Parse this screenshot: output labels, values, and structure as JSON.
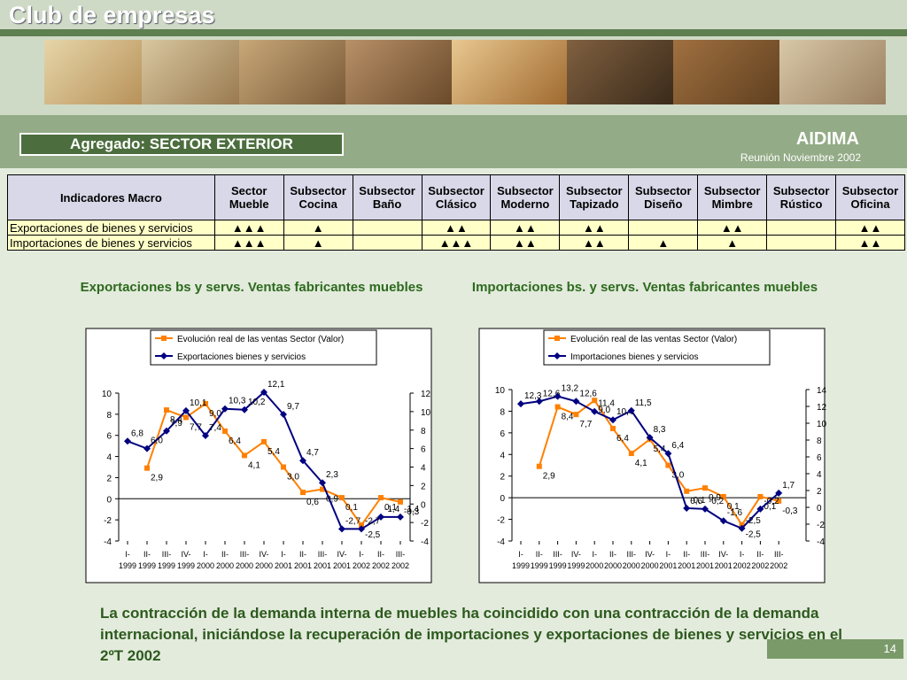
{
  "header": {
    "title": "Club de empresas",
    "section": "Agregado: SECTOR EXTERIOR",
    "org": "AIDIMA",
    "meeting": "Reunión Noviembre 2002"
  },
  "table": {
    "corner": "Indicadores Macro",
    "columns": [
      "Sector Mueble",
      "Subsector Cocina",
      "Subsector Baño",
      "Subsector Clásico",
      "Subsector Moderno",
      "Subsector Tapizado",
      "Subsector Diseño",
      "Subsector Mimbre",
      "Subsector Rústico",
      "Subsector Oficina"
    ],
    "rows": [
      [
        "Exportaciones de bienes y servicios",
        "▲▲▲",
        "▲",
        null,
        "▲▲",
        "▲▲",
        "▲▲",
        null,
        "▲▲",
        null,
        "▲▲"
      ],
      [
        "Importaciones de bienes y servicios",
        "▲▲▲",
        "▲",
        null,
        "▲▲▲",
        "▲▲",
        "▲▲",
        "▲",
        "▲",
        null,
        "▲▲"
      ]
    ]
  },
  "chart_data": [
    {
      "type": "line",
      "title": "Exportaciones bs y servs. Ventas fabricantes muebles",
      "categories": [
        [
          "I-",
          "1999"
        ],
        [
          "II-",
          "1999"
        ],
        [
          "III-",
          "1999"
        ],
        [
          "IV-",
          "1999"
        ],
        [
          "I-",
          "2000"
        ],
        [
          "II-",
          "2000"
        ],
        [
          "III-",
          "2000"
        ],
        [
          "IV-",
          "2000"
        ],
        [
          "I-",
          "2001"
        ],
        [
          "II-",
          "2001"
        ],
        [
          "III-",
          "2001"
        ],
        [
          "IV-",
          "2001"
        ],
        [
          "I-",
          "2002"
        ],
        [
          "II-",
          "2002"
        ],
        [
          "III-",
          "2002"
        ]
      ],
      "series": [
        {
          "name": "Evolución real de las ventas Sector (Valor)",
          "color": "#ff8000",
          "marker": "square",
          "values": [
            null,
            2.9,
            8.4,
            7.7,
            9.0,
            6.4,
            4.1,
            5.4,
            3.0,
            0.6,
            0.9,
            0.1,
            -2.5,
            0.1,
            -0.3
          ],
          "value_labels": [
            null,
            "2,9",
            "8,4",
            "7,7",
            "9,0",
            "6,4",
            "4,1",
            "5,4",
            "3,0",
            "0,6",
            "0,9",
            "0,1",
            "-2,5",
            "0,1",
            "-0,3"
          ]
        },
        {
          "name": "Exportaciones bienes y servicios",
          "color": "#000080",
          "marker": "diamond",
          "axis": "y2",
          "values": [
            6.8,
            6.0,
            7.9,
            10.1,
            7.4,
            10.3,
            10.2,
            12.1,
            9.7,
            4.7,
            2.3,
            -2.7,
            -2.7,
            -1.4,
            -1.4
          ],
          "value_labels": [
            "6,8",
            "6,0",
            "7,9",
            "10,1",
            "7,4",
            "10,3",
            "10,2",
            "12,1",
            "9,7",
            "4,7",
            "2,3",
            "-2,7",
            "-2,7",
            "-1,4",
            "-1,4"
          ]
        }
      ],
      "ylim": [
        -4,
        10
      ],
      "yticks": [
        -4,
        -2,
        0,
        2,
        4,
        6,
        8,
        10
      ],
      "y2lim": [
        -4,
        12
      ],
      "y2ticks": [
        -4,
        -2,
        0,
        2,
        4,
        6,
        8,
        10,
        12
      ]
    },
    {
      "type": "line",
      "title": "Importaciones bs. y servs. Ventas fabricantes muebles",
      "categories": [
        [
          "I-",
          "1999"
        ],
        [
          "II-",
          "1999"
        ],
        [
          "III-",
          "1999"
        ],
        [
          "IV-",
          "1999"
        ],
        [
          "I-",
          "2000"
        ],
        [
          "II-",
          "2000"
        ],
        [
          "III-",
          "2000"
        ],
        [
          "IV-",
          "2000"
        ],
        [
          "I-",
          "2001"
        ],
        [
          "II-",
          "2001"
        ],
        [
          "III-",
          "2001"
        ],
        [
          "IV-",
          "2001"
        ],
        [
          "I-",
          "2002"
        ],
        [
          "II-",
          "2002"
        ],
        [
          "III-",
          "2002"
        ]
      ],
      "series": [
        {
          "name": "Evolución real de las ventas Sector (Valor)",
          "color": "#ff8000",
          "marker": "square",
          "values": [
            null,
            2.9,
            8.4,
            7.7,
            9.0,
            6.4,
            4.1,
            5.4,
            3.0,
            0.6,
            0.9,
            0.1,
            -2.5,
            0.1,
            -0.3
          ],
          "value_labels": [
            null,
            "2,9",
            "8,4",
            "7,7",
            "9,0",
            "6,4",
            "4,1",
            "5,4",
            "3,0",
            "0,6",
            "0,9",
            "0,1",
            "-2,5",
            "0,1",
            "-0,3"
          ]
        },
        {
          "name": "Importaciones bienes y servicios",
          "color": "#000080",
          "marker": "diamond",
          "axis": "y2",
          "values": [
            12.3,
            12.6,
            13.2,
            12.6,
            11.4,
            10.4,
            11.5,
            8.3,
            6.4,
            -0.1,
            -0.2,
            -1.6,
            -2.5,
            -0.2,
            1.7
          ],
          "value_labels": [
            "12,3",
            "12,6",
            "13,2",
            "12,6",
            "11,4",
            "10,4",
            "11,5",
            "8,3",
            "6,4",
            "-0,1",
            "-0,2",
            "-1,6",
            "-2,5",
            "-0,2",
            "1,7"
          ]
        }
      ],
      "ylim": [
        -4,
        10
      ],
      "yticks": [
        -4,
        -2,
        0,
        2,
        4,
        6,
        8,
        10
      ],
      "y2lim": [
        -4,
        14
      ],
      "y2ticks": [
        -4,
        -2,
        0,
        2,
        4,
        6,
        8,
        10,
        12,
        14
      ]
    }
  ],
  "footer": {
    "text": "La contracción de la demanda interna de muebles ha coincidido con una contracción de la demanda internacional, iniciándose la recuperación de importaciones y exportaciones de bienes y servicios en el 2ºT 2002",
    "page": "14"
  }
}
